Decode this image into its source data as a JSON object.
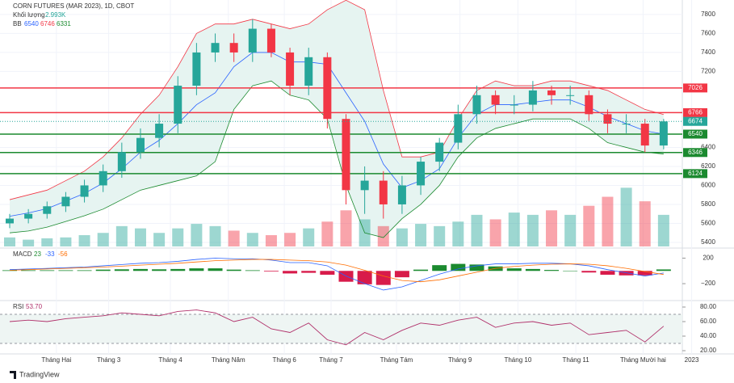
{
  "chart_data": {
    "type": "candlestick",
    "title": "CORN FUTURES (MAR 2023), 1D, CBOT",
    "volume_name": "Khối lượng",
    "volume_legend": {
      "value": 2.993,
      "label": "2.993K"
    },
    "xlim": [
      0,
      36
    ],
    "xticks": [
      {
        "value": 2.5,
        "label": "Tháng Hai"
      },
      {
        "value": 5.3,
        "label": "Tháng 3"
      },
      {
        "value": 8.6,
        "label": "Tháng 4"
      },
      {
        "value": 11.7,
        "label": "Tháng Năm"
      },
      {
        "value": 14.7,
        "label": "Tháng 6"
      },
      {
        "value": 17.2,
        "label": "Tháng 7"
      },
      {
        "value": 20.7,
        "label": "Tháng Tám"
      },
      {
        "value": 24.1,
        "label": "Tháng 9"
      },
      {
        "value": 27.2,
        "label": "Tháng 10"
      },
      {
        "value": 30.3,
        "label": "Tháng 11"
      },
      {
        "value": 33.9,
        "label": "Tháng Mười hai"
      },
      {
        "value": 36.5,
        "label": "2023"
      }
    ],
    "ylim": [
      5357,
      7910
    ],
    "yticks": [
      5400,
      5600,
      5800,
      6000,
      6200,
      6400,
      7200,
      7400,
      7600,
      7800
    ],
    "grid": true,
    "up_color": "#26a69a",
    "down_color": "#f23645",
    "open": [
      5600,
      5650,
      5700,
      5780,
      5880,
      6000,
      6150,
      6350,
      6500,
      6650,
      7050,
      7400,
      7500,
      7400,
      7650,
      7400,
      7050,
      7350,
      6700,
      5950,
      6050,
      5800,
      6000,
      6250,
      6450,
      6750,
      6950,
      6850,
      6850,
      7000,
      6950,
      6950,
      6750,
      6650,
      6650,
      6420
    ],
    "high": [
      5700,
      5750,
      5830,
      5930,
      6060,
      6220,
      6450,
      6600,
      6750,
      7150,
      7500,
      7600,
      7600,
      7750,
      7700,
      7450,
      7450,
      7400,
      6750,
      6200,
      6150,
      6100,
      6300,
      6500,
      6850,
      7050,
      7000,
      6950,
      7100,
      7050,
      7050,
      7000,
      6800,
      6750,
      6700,
      6700
    ],
    "low": [
      5550,
      5600,
      5650,
      5720,
      5820,
      5930,
      6080,
      6280,
      6400,
      6550,
      6950,
      7300,
      7300,
      7300,
      7350,
      6950,
      6950,
      6600,
      5800,
      5700,
      5650,
      5700,
      5900,
      6150,
      6380,
      6650,
      6750,
      6750,
      6780,
      6850,
      6850,
      6680,
      6550,
      6550,
      6350,
      6380
    ],
    "close": [
      5650,
      5700,
      5780,
      5880,
      6000,
      6150,
      6350,
      6500,
      6650,
      7050,
      7400,
      7500,
      7400,
      7650,
      7400,
      7050,
      7350,
      6700,
      5950,
      6050,
      5800,
      6000,
      6250,
      6450,
      6750,
      6950,
      6850,
      6850,
      7000,
      6950,
      6950,
      6750,
      6650,
      6650,
      6420,
      6674
    ],
    "volume": [
      20,
      15,
      18,
      20,
      25,
      30,
      45,
      40,
      30,
      40,
      50,
      45,
      35,
      30,
      25,
      30,
      40,
      55,
      80,
      60,
      45,
      40,
      50,
      45,
      55,
      70,
      60,
      75,
      70,
      80,
      70,
      90,
      110,
      130,
      100,
      70
    ],
    "vollim": [
      0,
      170
    ],
    "levels": [
      {
        "value": 7026,
        "color": "#f23645"
      },
      {
        "value": 6766,
        "color": "#f23645"
      },
      {
        "value": 6540,
        "color": "#1b8a2f"
      },
      {
        "value": 6346,
        "color": "#1b8a2f"
      },
      {
        "value": 6124,
        "color": "#1b8a2f"
      }
    ],
    "last_price": 6674,
    "last_color": "#26a69a",
    "bb": {
      "name": "BB",
      "legend": [
        6540,
        6746,
        6331
      ],
      "upper_color": "#f23645",
      "middle_color": "#2962ff",
      "lower_color": "#1b8a2f",
      "fill": "#e6f4f1",
      "upper": [
        5850,
        5900,
        5950,
        6050,
        6150,
        6300,
        6500,
        6750,
        6950,
        7250,
        7600,
        7700,
        7700,
        7750,
        7700,
        7650,
        7700,
        7850,
        7950,
        7850,
        7000,
        6300,
        6300,
        6350,
        6700,
        7000,
        7100,
        7050,
        7050,
        7100,
        7100,
        7050,
        7000,
        6900,
        6800,
        6746
      ],
      "middle": [
        5675,
        5710,
        5755,
        5835,
        5915,
        6025,
        6175,
        6350,
        6475,
        6650,
        6850,
        6975,
        7250,
        7400,
        7400,
        7300,
        7300,
        7275,
        6975,
        6675,
        6225,
        5975,
        6050,
        6175,
        6500,
        6750,
        6850,
        6850,
        6875,
        6900,
        6900,
        6825,
        6725,
        6650,
        6575,
        6540
      ],
      "lower": [
        5500,
        5520,
        5560,
        5620,
        5680,
        5750,
        5850,
        5950,
        6000,
        6050,
        6100,
        6250,
        6800,
        7050,
        7100,
        6950,
        6900,
        6700,
        6000,
        5500,
        5450,
        5650,
        5800,
        6000,
        6300,
        6500,
        6600,
        6650,
        6700,
        6700,
        6700,
        6600,
        6450,
        6400,
        6350,
        6331
      ]
    },
    "macd": {
      "name": "MACD",
      "legend": [
        23,
        -33,
        -56
      ],
      "ylim": [
        -440,
        320
      ],
      "yticks": [
        200,
        {
          "value": -200,
          "label": "−200"
        }
      ],
      "macd_color": "#2962ff",
      "signal_color": "#ff6d00",
      "macd": [
        20,
        30,
        40,
        50,
        60,
        80,
        100,
        120,
        130,
        150,
        180,
        200,
        190,
        190,
        170,
        130,
        130,
        80,
        -80,
        -200,
        -300,
        -250,
        -150,
        -50,
        30,
        80,
        110,
        110,
        120,
        120,
        110,
        80,
        20,
        -30,
        -80,
        -33
      ],
      "signal": [
        10,
        20,
        30,
        40,
        50,
        60,
        75,
        90,
        105,
        120,
        140,
        160,
        170,
        180,
        180,
        170,
        160,
        140,
        90,
        10,
        -80,
        -150,
        -170,
        -140,
        -80,
        -20,
        40,
        70,
        90,
        105,
        110,
        105,
        80,
        40,
        -10,
        -56
      ],
      "hist": [
        10,
        10,
        10,
        10,
        10,
        20,
        25,
        30,
        25,
        30,
        40,
        40,
        20,
        10,
        -10,
        -40,
        -30,
        -60,
        -170,
        -210,
        -220,
        -100,
        20,
        90,
        110,
        100,
        70,
        40,
        30,
        15,
        0,
        -25,
        -60,
        -70,
        -70,
        23
      ]
    },
    "rsi": {
      "name": "RSI",
      "legend": {
        "value": 53.7,
        "label": "53.70"
      },
      "ylim": [
        15,
        85
      ],
      "band": [
        30,
        70
      ],
      "color": "#b0306a",
      "yticks": [
        {
          "value": 80,
          "label": "80.00"
        },
        {
          "value": 60,
          "label": "60.00"
        },
        {
          "value": 40,
          "label": "40.00"
        },
        {
          "value": 20,
          "label": "20.00"
        }
      ],
      "values": [
        60,
        62,
        60,
        64,
        66,
        68,
        72,
        70,
        68,
        74,
        76,
        72,
        60,
        66,
        50,
        45,
        58,
        35,
        28,
        45,
        35,
        48,
        58,
        55,
        62,
        66,
        52,
        58,
        60,
        55,
        58,
        42,
        45,
        48,
        32,
        53.7
      ]
    },
    "footer": "TradingView"
  }
}
